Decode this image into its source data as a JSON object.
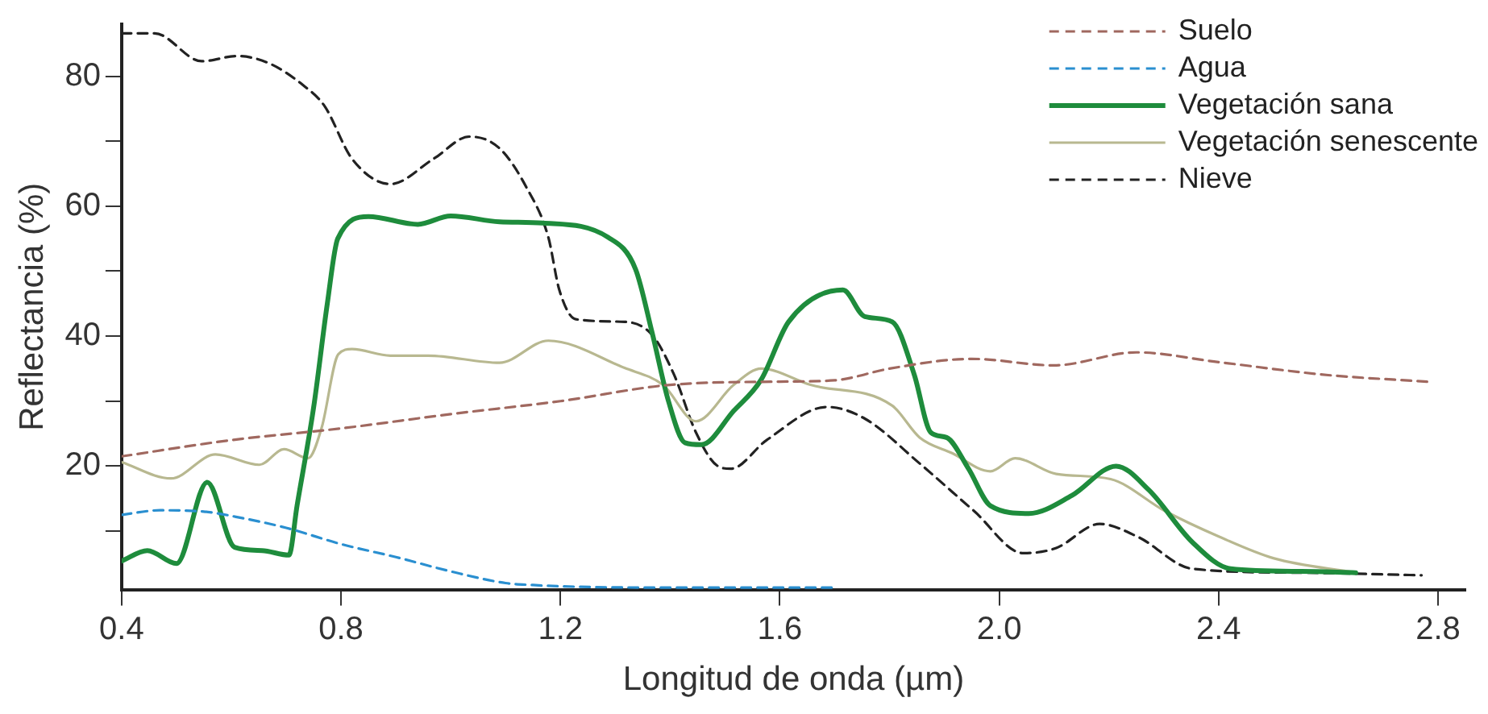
{
  "chart_data": {
    "type": "line",
    "xlabel": "Longitud de onda (µm)",
    "ylabel": "Reflectancia (%)",
    "xlim": [
      0.4,
      2.85
    ],
    "ylim": [
      1,
      88
    ],
    "xticks": [
      0.4,
      0.8,
      1.2,
      1.6,
      {
        "value": 2,
        "label": "2.0"
      },
      2.4,
      2.8
    ],
    "yticks": [
      {
        "value": 10,
        "label": null
      },
      20,
      {
        "value": 30,
        "label": null
      },
      40,
      {
        "value": 50,
        "label": null
      },
      60,
      {
        "value": 70,
        "label": null
      },
      80
    ],
    "legend": "top right",
    "marker": "none",
    "grid": false,
    "series": [
      {
        "name": "Suelo",
        "color": "#a0685f",
        "line_style": "dashed",
        "x": [
          0.4,
          0.6,
          0.8,
          1.0,
          1.2,
          1.4,
          1.6,
          1.7,
          1.8,
          1.95,
          2.1,
          2.25,
          2.4,
          2.6,
          2.78
        ],
        "values": [
          21.5,
          24,
          25.8,
          28,
          30,
          32.5,
          33,
          33.2,
          35,
          36.5,
          35.5,
          37.5,
          36,
          34,
          33
        ]
      },
      {
        "name": "Agua",
        "color": "#2a8fd0",
        "line_style": "dashed",
        "x": [
          0.4,
          0.47,
          0.55,
          0.62,
          0.7,
          0.8,
          0.9,
          1.0,
          1.1,
          1.15,
          1.2,
          1.4,
          1.7
        ],
        "values": [
          12.5,
          13.2,
          13,
          12,
          10.5,
          8,
          6,
          3.8,
          2,
          1.7,
          1.5,
          1.3,
          1.3
        ]
      },
      {
        "name": "Vegetación sana",
        "color": "#1e8c3c",
        "line_style": "solid",
        "x": [
          0.4,
          0.447,
          0.5,
          0.556,
          0.606,
          0.656,
          0.705,
          0.72,
          0.75,
          0.775,
          0.794,
          0.85,
          0.94,
          1.0,
          1.089,
          1.168,
          1.287,
          1.337,
          1.367,
          1.397,
          1.427,
          1.457,
          1.516,
          1.566,
          1.616,
          1.715,
          1.755,
          1.805,
          1.845,
          1.875,
          1.904,
          1.944,
          1.984,
          2.054,
          2.133,
          2.213,
          2.273,
          2.352,
          2.422,
          2.55,
          2.65
        ],
        "values": [
          5.4,
          7,
          5,
          17.5,
          7.5,
          7,
          6.3,
          14,
          29,
          45,
          55,
          58.4,
          57.2,
          58.5,
          57.6,
          57.4,
          55.2,
          50.3,
          40.6,
          30,
          23.6,
          23.3,
          28.5,
          33.3,
          42.2,
          47.1,
          43,
          42.2,
          34.1,
          25.2,
          24.4,
          19.6,
          13.9,
          12.7,
          15.5,
          20,
          16.3,
          8.3,
          4.2,
          3.8,
          3.6
        ]
      },
      {
        "name": "Vegetación senescente",
        "color": "#b8b890",
        "line_style": "solid",
        "x": [
          0.4,
          0.49,
          0.571,
          0.651,
          0.696,
          0.74,
          0.765,
          0.795,
          0.82,
          0.89,
          0.959,
          1.089,
          1.178,
          1.317,
          1.387,
          1.447,
          1.516,
          1.566,
          1.656,
          1.805,
          1.855,
          1.914,
          1.984,
          2.029,
          2.104,
          2.203,
          2.302,
          2.402,
          2.501,
          2.65
        ],
        "values": [
          20.6,
          18.1,
          21.8,
          20.2,
          22.6,
          21.2,
          26,
          37.2,
          38,
          37,
          37,
          35.9,
          39.3,
          35.1,
          32.5,
          26.9,
          32.5,
          35,
          32.5,
          29.3,
          24.4,
          22,
          19.2,
          21.2,
          18.8,
          18,
          13.1,
          9.1,
          5.8,
          3.6
        ]
      },
      {
        "name": "Nieve",
        "color": "#222222",
        "line_style": "dashed",
        "x": [
          0.4,
          0.46,
          0.546,
          0.611,
          0.671,
          0.731,
          0.77,
          0.82,
          0.89,
          0.969,
          1.034,
          1.089,
          1.138,
          1.178,
          1.198,
          1.228,
          1.317,
          1.367,
          1.407,
          1.447,
          1.487,
          1.511,
          1.576,
          1.686,
          1.755,
          1.855,
          1.954,
          2.044,
          2.104,
          2.183,
          2.253,
          2.352,
          2.55,
          2.77
        ],
        "values": [
          86.6,
          86.6,
          82.3,
          83.1,
          81.9,
          78.6,
          75.4,
          67.3,
          63.4,
          67.3,
          70.7,
          68.9,
          62.9,
          55.2,
          47.1,
          42.6,
          42.2,
          40.2,
          34.1,
          25.2,
          20,
          19.6,
          24,
          29.1,
          27.3,
          20.4,
          13.1,
          6.6,
          7.4,
          11.1,
          9.1,
          4.2,
          3.6,
          3.2
        ]
      }
    ]
  }
}
